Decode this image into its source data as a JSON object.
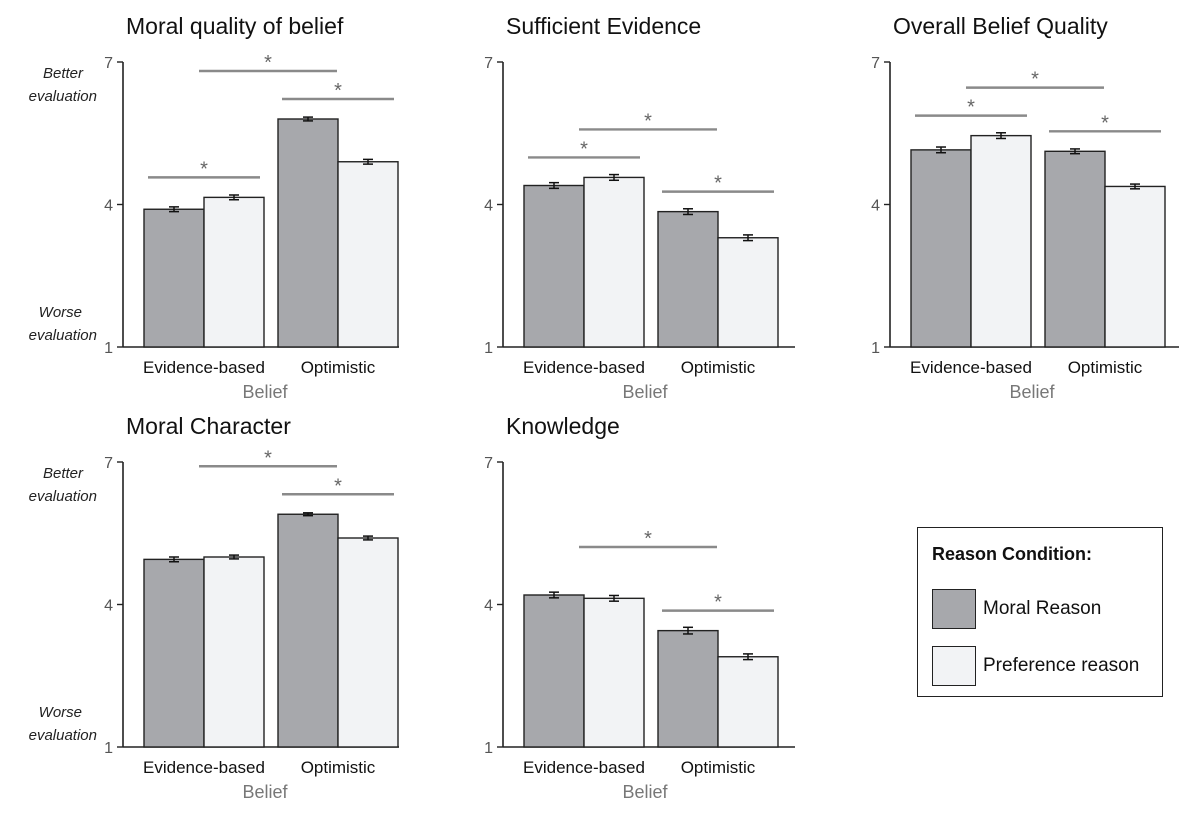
{
  "colors": {
    "moral": "#a7a8ac",
    "preference": "#f2f3f5",
    "axis": "#222222",
    "sig_line": "#8a8a8a"
  },
  "legend": {
    "title": "Reason Condition:",
    "items": [
      {
        "label": "Moral Reason",
        "color": "#a7a8ac"
      },
      {
        "label": "Preference reason",
        "color": "#f2f3f5"
      }
    ]
  },
  "chart_data": [
    {
      "type": "bar",
      "title": "Moral quality of belief",
      "xlabel": "Belief",
      "ylabel": "",
      "ylim": [
        1,
        7
      ],
      "yticks": [
        1,
        4,
        7
      ],
      "annotations": {
        "top": "Better evaluation",
        "bottom": "Worse evaluation"
      },
      "categories": [
        "Evidence-based",
        "Optimistic"
      ],
      "series": [
        {
          "name": "Moral Reason",
          "values": [
            3.9,
            5.8
          ],
          "errors": [
            0.05,
            0.04
          ]
        },
        {
          "name": "Preference reason",
          "values": [
            4.15,
            4.9
          ],
          "errors": [
            0.05,
            0.05
          ]
        }
      ],
      "significance": [
        {
          "label": "*",
          "from": 0,
          "to": 1
        },
        {
          "label": "*",
          "from": 0.5,
          "to": 2.5
        },
        {
          "label": "*",
          "from": 2,
          "to": 3
        }
      ]
    },
    {
      "type": "bar",
      "title": "Sufficient Evidence",
      "xlabel": "Belief",
      "ylabel": "",
      "ylim": [
        1,
        7
      ],
      "yticks": [
        1,
        4,
        7
      ],
      "annotations": {
        "top": "",
        "bottom": ""
      },
      "categories": [
        "Evidence-based",
        "Optimistic"
      ],
      "series": [
        {
          "name": "Moral Reason",
          "values": [
            4.4,
            3.85
          ],
          "errors": [
            0.06,
            0.06
          ]
        },
        {
          "name": "Preference reason",
          "values": [
            4.57,
            3.3
          ],
          "errors": [
            0.06,
            0.06
          ]
        }
      ],
      "significance": [
        {
          "label": "*",
          "from": 0,
          "to": 1
        },
        {
          "label": "*",
          "from": 0.5,
          "to": 2.5
        },
        {
          "label": "*",
          "from": 2,
          "to": 3
        }
      ]
    },
    {
      "type": "bar",
      "title": "Overall Belief Quality",
      "xlabel": "Belief",
      "ylabel": "",
      "ylim": [
        1,
        7
      ],
      "yticks": [
        1,
        4,
        7
      ],
      "annotations": {
        "top": "",
        "bottom": ""
      },
      "categories": [
        "Evidence-based",
        "Optimistic"
      ],
      "series": [
        {
          "name": "Moral Reason",
          "values": [
            5.15,
            5.12
          ],
          "errors": [
            0.06,
            0.05
          ]
        },
        {
          "name": "Preference reason",
          "values": [
            5.45,
            4.38
          ],
          "errors": [
            0.06,
            0.05
          ]
        }
      ],
      "significance": [
        {
          "label": "*",
          "from": 0,
          "to": 1
        },
        {
          "label": "*",
          "from": 0.5,
          "to": 2.5
        },
        {
          "label": "*",
          "from": 2,
          "to": 3
        }
      ]
    },
    {
      "type": "bar",
      "title": "Moral Character",
      "xlabel": "Belief",
      "ylabel": "",
      "ylim": [
        1,
        7
      ],
      "yticks": [
        1,
        4,
        7
      ],
      "annotations": {
        "top": "Better evaluation",
        "bottom": "Worse evaluation"
      },
      "categories": [
        "Evidence-based",
        "Optimistic"
      ],
      "series": [
        {
          "name": "Moral Reason",
          "values": [
            4.95,
            5.9
          ],
          "errors": [
            0.05,
            0.03
          ]
        },
        {
          "name": "Preference reason",
          "values": [
            5.0,
            5.4
          ],
          "errors": [
            0.04,
            0.04
          ]
        }
      ],
      "significance": [
        {
          "label": "*",
          "from": 0.5,
          "to": 2.5
        },
        {
          "label": "*",
          "from": 2,
          "to": 3
        }
      ]
    },
    {
      "type": "bar",
      "title": "Knowledge",
      "xlabel": "Belief",
      "ylabel": "",
      "ylim": [
        1,
        7
      ],
      "yticks": [
        1,
        4,
        7
      ],
      "annotations": {
        "top": "",
        "bottom": ""
      },
      "categories": [
        "Evidence-based",
        "Optimistic"
      ],
      "series": [
        {
          "name": "Moral Reason",
          "values": [
            4.2,
            3.45
          ],
          "errors": [
            0.06,
            0.07
          ]
        },
        {
          "name": "Preference reason",
          "values": [
            4.13,
            2.9
          ],
          "errors": [
            0.06,
            0.06
          ]
        }
      ],
      "significance": [
        {
          "label": "*",
          "from": 0.5,
          "to": 2.5
        },
        {
          "label": "*",
          "from": 2,
          "to": 3
        }
      ]
    }
  ]
}
